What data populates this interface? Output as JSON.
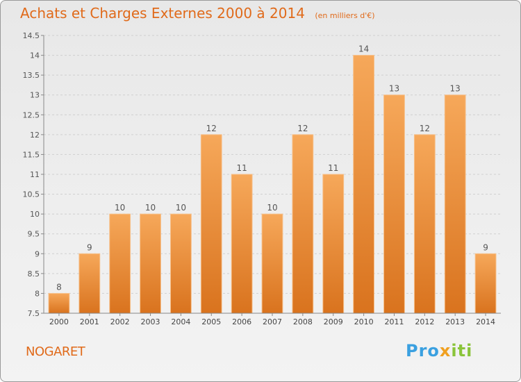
{
  "header": {
    "title": "Achats et Charges Externes 2000 à 2014",
    "unit": "(en milliers d'€)"
  },
  "footer": {
    "place": "NOGARET",
    "logo": [
      "Pro",
      "x",
      "iti"
    ]
  },
  "colors": {
    "accent": "#e06a1a",
    "bar_top": "#f6a85a",
    "bar_bottom": "#d9731e"
  },
  "chart_data": {
    "type": "bar",
    "title": "Achats et Charges Externes 2000 à 2014",
    "subtitle": "(en milliers d'€)",
    "categories": [
      "2000",
      "2001",
      "2002",
      "2003",
      "2004",
      "2005",
      "2006",
      "2007",
      "2008",
      "2009",
      "2010",
      "2011",
      "2012",
      "2013",
      "2014"
    ],
    "values": [
      8,
      9,
      10,
      10,
      10,
      12,
      11,
      10,
      12,
      11,
      14,
      13,
      12,
      13,
      9
    ],
    "ylim": [
      7.5,
      14.5
    ],
    "yticks": [
      7.5,
      8,
      8.5,
      9,
      9.5,
      10,
      10.5,
      11,
      11.5,
      12,
      12.5,
      13,
      13.5,
      14,
      14.5
    ],
    "ytick_labels": [
      "7.5",
      "8",
      "8.5",
      "9",
      "9.5",
      "10",
      "10.5",
      "11",
      "11.5",
      "12",
      "12.5",
      "13",
      "13.5",
      "14",
      "14.5"
    ],
    "grid": true,
    "data_labels": true
  }
}
